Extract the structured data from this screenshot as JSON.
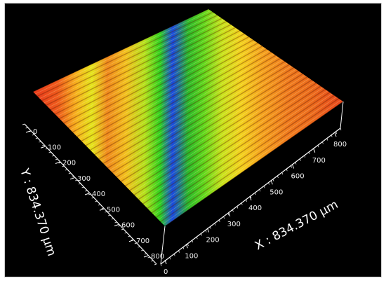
{
  "image": {
    "description_colors": {
      "background": "#000000",
      "axis": "#ffffff",
      "surface_high": "#e8261c",
      "surface_mid_high": "#f5a21e",
      "surface_mid": "#d8e21c",
      "surface_low_mid": "#3fd21e",
      "surface_low": "#1a3cd8"
    }
  },
  "axes": {
    "x_title": "X : 834.370 µm",
    "y_title": "Y : 834.370 µm",
    "x_ticks": [
      "0",
      "100",
      "200",
      "300",
      "400",
      "500",
      "600",
      "700",
      "800"
    ],
    "y_ticks": [
      "0",
      "100",
      "200",
      "300",
      "400",
      "500",
      "600",
      "700",
      "800"
    ]
  }
}
